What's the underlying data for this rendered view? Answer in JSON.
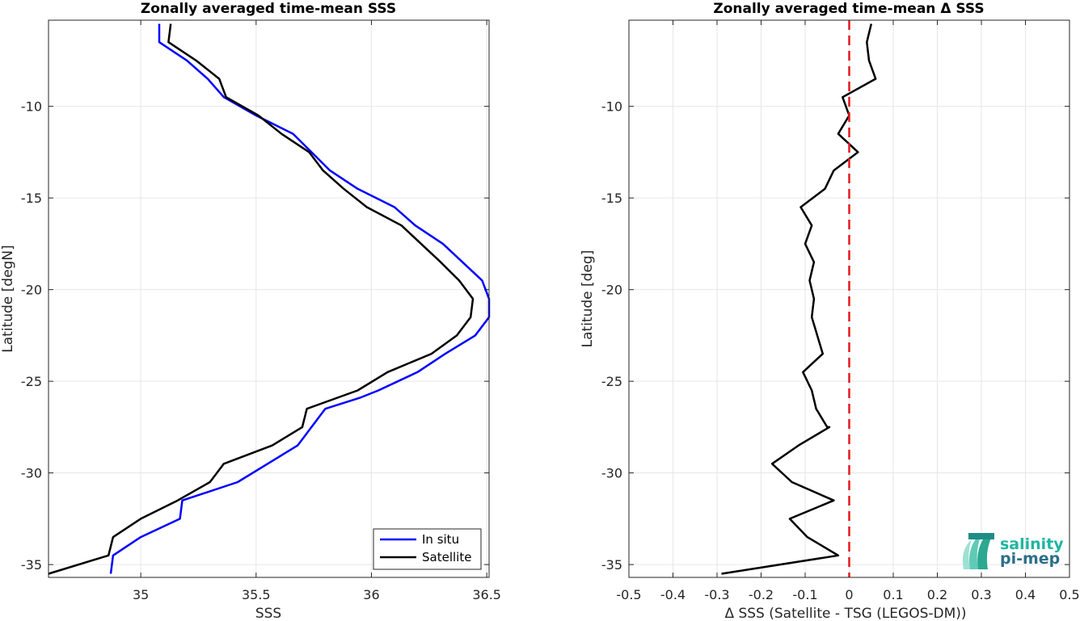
{
  "chart_data": [
    {
      "type": "line",
      "title": "Zonally averaged time-mean SSS",
      "xlabel": "SSS",
      "ylabel": "Latitude [degN]",
      "xlim": [
        34.6,
        36.51
      ],
      "ylim": [
        -35.7,
        -5.3
      ],
      "xticks": [
        35,
        35.5,
        36,
        36.5
      ],
      "xtick_labels": [
        "35",
        "35.5",
        "36",
        "36.5"
      ],
      "yticks": [
        -35,
        -30,
        -25,
        -20,
        -15,
        -10
      ],
      "ytick_labels": [
        "-35",
        "-30",
        "-25",
        "-20",
        "-15",
        "-10"
      ],
      "grid": true,
      "legend_position": "bottom-right",
      "series": [
        {
          "name": "In situ",
          "color": "#0000ff",
          "x": [
            35.08,
            35.08,
            35.2,
            35.29,
            35.36,
            35.5,
            35.66,
            35.74,
            35.82,
            35.94,
            36.1,
            36.19,
            36.31,
            36.48,
            36.51,
            36.51,
            36.45,
            36.32,
            36.2,
            36.03,
            35.95,
            35.8,
            35.74,
            35.68,
            35.55,
            35.42,
            35.18,
            35.17,
            35.0,
            34.88,
            34.87
          ],
          "y": [
            -5.5,
            -6.5,
            -7.5,
            -8.5,
            -9.5,
            -10.5,
            -11.5,
            -12.5,
            -13.5,
            -14.5,
            -15.5,
            -16.5,
            -17.5,
            -19.5,
            -20.5,
            -21.5,
            -22.5,
            -23.5,
            -24.5,
            -25.5,
            -25.9,
            -26.5,
            -27.5,
            -28.5,
            -29.5,
            -30.5,
            -31.5,
            -32.5,
            -33.5,
            -34.5,
            -35.5
          ]
        },
        {
          "name": "Satellite",
          "color": "#000000",
          "x": [
            35.13,
            35.12,
            35.24,
            35.34,
            35.37,
            35.51,
            35.61,
            35.73,
            35.79,
            35.88,
            35.98,
            36.13,
            36.3,
            36.38,
            36.44,
            36.43,
            36.37,
            36.26,
            36.07,
            35.94,
            35.72,
            35.7,
            35.57,
            35.36,
            35.3,
            35.16,
            35.0,
            34.88,
            34.86,
            34.6
          ],
          "y": [
            -5.5,
            -6.5,
            -7.5,
            -8.5,
            -9.5,
            -10.5,
            -11.5,
            -12.5,
            -13.5,
            -14.5,
            -15.5,
            -16.5,
            -18.5,
            -19.5,
            -20.5,
            -21.5,
            -22.5,
            -23.5,
            -24.5,
            -25.5,
            -26.5,
            -27.5,
            -28.5,
            -29.5,
            -30.5,
            -31.5,
            -32.5,
            -33.5,
            -34.5,
            -35.5
          ]
        }
      ]
    },
    {
      "type": "line",
      "title": "Zonally averaged time-mean Δ SSS",
      "xlabel": "Δ SSS (Satellite - TSG (LEGOS-DM))",
      "ylabel": "Latitude [deg]",
      "xlim": [
        -0.5,
        0.5
      ],
      "ylim": [
        -35.7,
        -5.3
      ],
      "xticks": [
        -0.5,
        -0.4,
        -0.3,
        -0.2,
        -0.1,
        0,
        0.1,
        0.2,
        0.3,
        0.4,
        0.5
      ],
      "xtick_labels": [
        "-0.5",
        "-0.4",
        "-0.3",
        "-0.2",
        "-0.1",
        "0",
        "0.1",
        "0.2",
        "0.3",
        "0.4",
        "0.5"
      ],
      "yticks": [
        -35,
        -30,
        -25,
        -20,
        -15,
        -10
      ],
      "ytick_labels": [
        "-35",
        "-30",
        "-25",
        "-20",
        "-15",
        "-10"
      ],
      "grid": true,
      "reference_line": {
        "x": 0,
        "color": "#e31a1c",
        "style": "dashed"
      },
      "series": [
        {
          "color": "#000000",
          "x": [
            0.05,
            0.04,
            0.045,
            0.06,
            -0.015,
            0.0,
            -0.025,
            0.02,
            -0.035,
            -0.055,
            -0.11,
            -0.085,
            -0.1,
            -0.08,
            -0.09,
            -0.08,
            -0.085,
            -0.06,
            -0.105,
            -0.085,
            -0.075,
            -0.05,
            -0.045,
            -0.115,
            -0.175,
            -0.13,
            -0.035,
            -0.135,
            -0.095,
            -0.025,
            -0.29
          ],
          "y": [
            -5.5,
            -6.5,
            -7.5,
            -8.5,
            -9.5,
            -10.5,
            -11.5,
            -12.5,
            -13.5,
            -14.5,
            -15.5,
            -16.5,
            -17.5,
            -18.5,
            -19.5,
            -20.5,
            -21.5,
            -23.5,
            -24.5,
            -25.5,
            -26.5,
            -27.5,
            -27.5,
            -28.5,
            -29.5,
            -30.5,
            -31.5,
            -32.5,
            -33.5,
            -34.5,
            -35.5
          ]
        }
      ]
    }
  ],
  "logo": {
    "line1": "salinity",
    "line2": "pi-mep",
    "color1": "#1fb5a0",
    "color2": "#2b6f8a"
  }
}
